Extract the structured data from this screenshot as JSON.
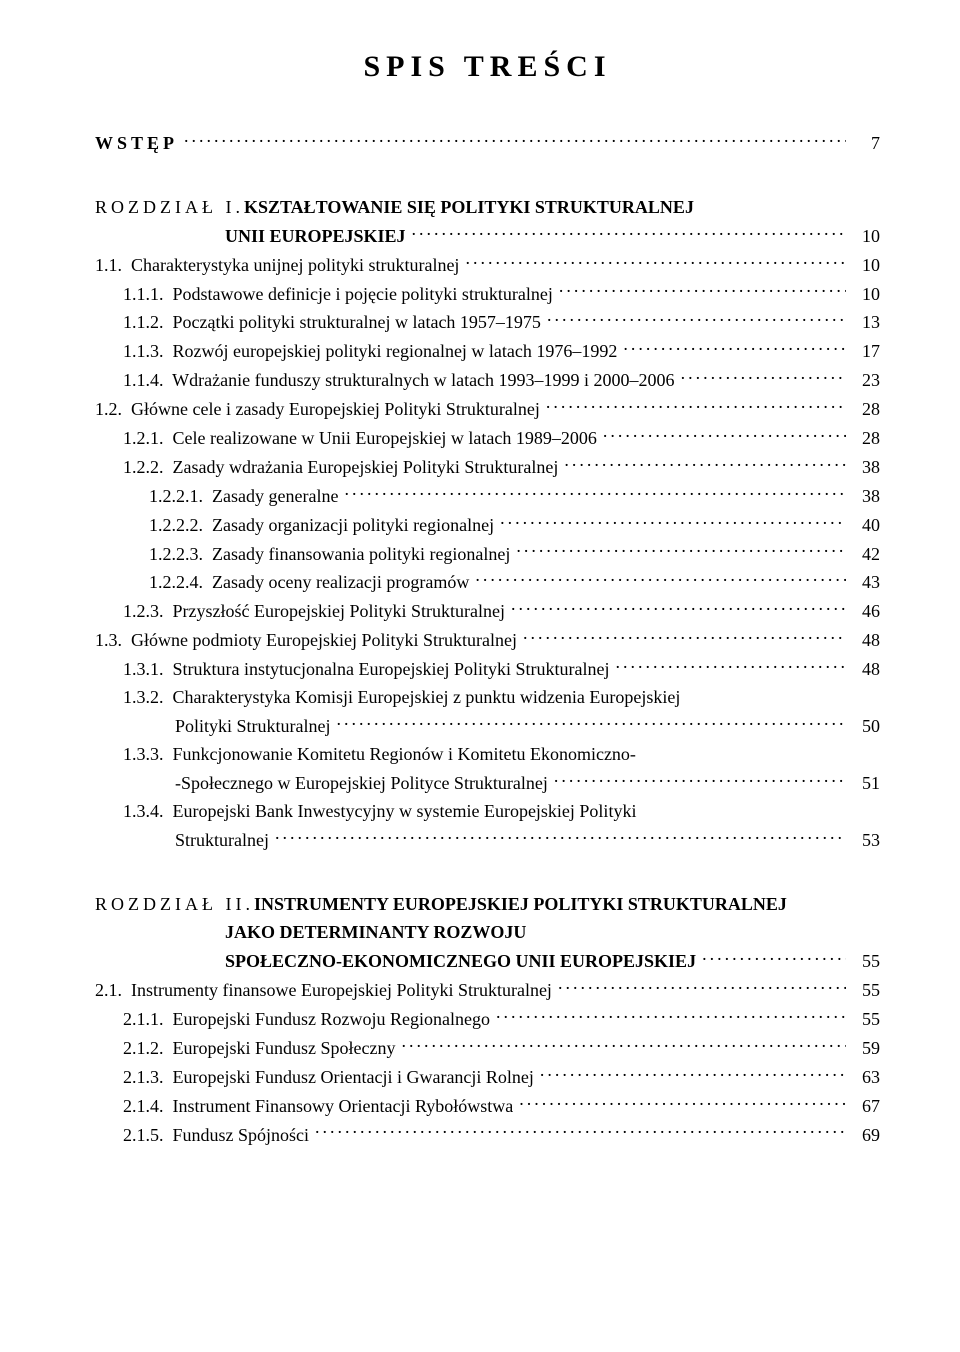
{
  "title": "SPIS TREŚCI",
  "wstep": {
    "label": "WSTĘP",
    "page": "7"
  },
  "chapter1": {
    "num": "ROZDZIAŁ I.",
    "title_l1": "KSZTAŁTOWANIE SIĘ POLITYKI STRUKTURALNEJ",
    "title_l2": "UNII EUROPEJSKIEJ",
    "page": "10",
    "entries": [
      {
        "lvl": 1,
        "txt": "1.1.  Charakterystyka unijnej polityki strukturalnej",
        "pg": "10"
      },
      {
        "lvl": 2,
        "txt": "1.1.1.  Podstawowe definicje i pojęcie polityki strukturalnej",
        "pg": "10"
      },
      {
        "lvl": 2,
        "txt": "1.1.2.  Początki polityki strukturalnej w latach 1957–1975",
        "pg": "13"
      },
      {
        "lvl": 2,
        "txt": "1.1.3.  Rozwój europejskiej polityki regionalnej w latach 1976–1992",
        "pg": "17"
      },
      {
        "lvl": 2,
        "txt": "1.1.4.  Wdrażanie funduszy strukturalnych w latach 1993–1999 i 2000–2006",
        "pg": "23"
      },
      {
        "lvl": 1,
        "txt": "1.2.  Główne cele i zasady Europejskiej Polityki Strukturalnej",
        "pg": "28"
      },
      {
        "lvl": 2,
        "txt": "1.2.1.  Cele realizowane w Unii Europejskiej w latach 1989–2006",
        "pg": "28"
      },
      {
        "lvl": 2,
        "txt": "1.2.2.  Zasady wdrażania Europejskiej Polityki Strukturalnej",
        "pg": "38"
      },
      {
        "lvl": 3,
        "txt": "1.2.2.1.  Zasady generalne",
        "pg": "38"
      },
      {
        "lvl": 3,
        "txt": "1.2.2.2.  Zasady organizacji polityki regionalnej",
        "pg": "40"
      },
      {
        "lvl": 3,
        "txt": "1.2.2.3.  Zasady finansowania polityki regionalnej",
        "pg": "42"
      },
      {
        "lvl": 3,
        "txt": "1.2.2.4.  Zasady oceny realizacji programów",
        "pg": "43"
      },
      {
        "lvl": 2,
        "txt": "1.2.3.  Przyszłość Europejskiej Polityki Strukturalnej",
        "pg": "46"
      },
      {
        "lvl": 1,
        "txt": "1.3.  Główne podmioty Europejskiej Polityki Strukturalnej",
        "pg": "48"
      },
      {
        "lvl": 2,
        "txt": "1.3.1.  Struktura instytucjonalna Europejskiej Polityki Strukturalnej",
        "pg": "48"
      },
      {
        "lvl": 2,
        "txt": "1.3.2.  Charakterystyka Komisji Europejskiej z punktu widzenia Europejskiej",
        "cont": "Polityki Strukturalnej",
        "pg": "50"
      },
      {
        "lvl": 2,
        "txt": "1.3.3.  Funkcjonowanie Komitetu Regionów i Komitetu Ekonomiczno-",
        "cont": "-Społecznego w Europejskiej Polityce Strukturalnej",
        "pg": "51"
      },
      {
        "lvl": 2,
        "txt": "1.3.4.  Europejski Bank Inwestycyjny w systemie Europejskiej Polityki",
        "cont": "Strukturalnej",
        "pg": "53"
      }
    ]
  },
  "chapter2": {
    "num": "ROZDZIAŁ II.",
    "title_l1": "INSTRUMENTY EUROPEJSKIEJ POLITYKI STRUKTURALNEJ",
    "title_l2": "JAKO DETERMINANTY ROZWOJU",
    "title_l3": "SPOŁECZNO-EKONOMICZNEGO UNII EUROPEJSKIEJ",
    "page": "55",
    "entries": [
      {
        "lvl": 1,
        "txt": "2.1.  Instrumenty finansowe Europejskiej Polityki Strukturalnej",
        "pg": "55"
      },
      {
        "lvl": 2,
        "txt": "2.1.1.  Europejski Fundusz Rozwoju Regionalnego",
        "pg": "55"
      },
      {
        "lvl": 2,
        "txt": "2.1.2.  Europejski Fundusz Społeczny",
        "pg": "59"
      },
      {
        "lvl": 2,
        "txt": "2.1.3.  Europejski Fundusz Orientacji i Gwarancji Rolnej",
        "pg": "63"
      },
      {
        "lvl": 2,
        "txt": "2.1.4.  Instrument Finansowy Orientacji Rybołówstwa",
        "pg": "67"
      },
      {
        "lvl": 2,
        "txt": "2.1.5.  Fundusz Spójności",
        "pg": "69"
      }
    ]
  }
}
